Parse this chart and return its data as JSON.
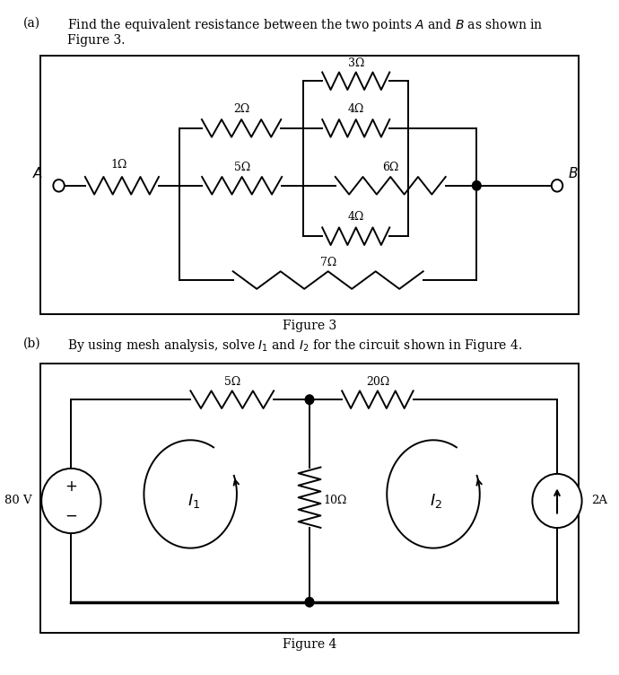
{
  "bg_color": "#ffffff",
  "fig_width": 6.9,
  "fig_height": 7.52,
  "part_a_text1": "Find the equivalent resistance between the two points $A$ and $B$ as shown in",
  "part_a_text2": "Figure 3.",
  "part_b_text": "By using mesh analysis, solve $I_1$ and $I_2$ for the circuit shown in Figure 4.",
  "fig3_caption": "Figure 3",
  "fig4_caption": "Figure 4"
}
